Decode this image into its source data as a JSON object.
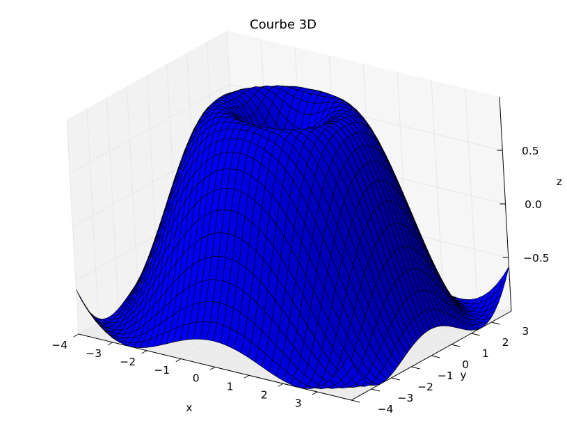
{
  "chart_data": {
    "type": "surface3d",
    "title": "Courbe 3D",
    "xlabel": "x",
    "ylabel": "y",
    "zlabel": "z",
    "function": "z = sin(sqrt(x^2 + y^2))",
    "x_range": [
      -4,
      4
    ],
    "y_range": [
      -4,
      4
    ],
    "z_range": [
      -1,
      1
    ],
    "grid_samples": 40,
    "x_ticks": [
      "−4",
      "−3",
      "−2",
      "−1",
      "0",
      "1",
      "2",
      "3"
    ],
    "y_ticks": [
      "−4",
      "−3",
      "−2",
      "−1",
      "0",
      "1",
      "2",
      "3"
    ],
    "z_ticks": [
      "−0.5",
      "0.0",
      "0.5"
    ],
    "x_tick_values": [
      -4,
      -3,
      -2,
      -1,
      0,
      1,
      2,
      3
    ],
    "y_tick_values": [
      -4,
      -3,
      -2,
      -1,
      0,
      1,
      2,
      3
    ],
    "z_tick_values": [
      -0.5,
      0.0,
      0.5
    ],
    "grid": true,
    "colors": {
      "surface": "#0000ff",
      "edge": "#000000",
      "pane": "#f2f2f2",
      "gridline": "#e6e6e6"
    }
  }
}
